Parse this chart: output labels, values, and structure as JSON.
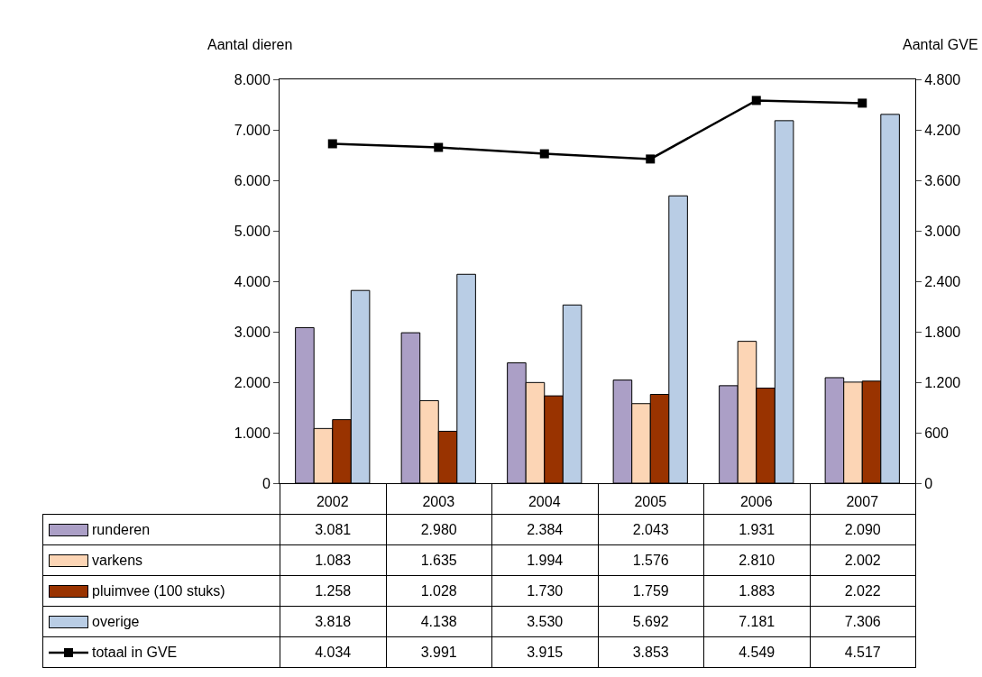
{
  "chart_data": {
    "type": "bar",
    "ylabel": "Aantal dieren",
    "y2label": "Aantal GVE",
    "categories": [
      "2002",
      "2003",
      "2004",
      "2005",
      "2006",
      "2007"
    ],
    "series": [
      {
        "name": "runderen",
        "color": "#ab9fc6",
        "values": [
          3081,
          2980,
          2384,
          2043,
          1931,
          2090
        ],
        "value_labels": [
          "3.081",
          "2.980",
          "2.384",
          "2.043",
          "1.931",
          "2.090"
        ]
      },
      {
        "name": "varkens",
        "color": "#fcd5b5",
        "values": [
          1083,
          1635,
          1994,
          1576,
          2810,
          2002
        ],
        "value_labels": [
          "1.083",
          "1.635",
          "1.994",
          "1.576",
          "2.810",
          "2.002"
        ]
      },
      {
        "name": "pluimvee (100 stuks)",
        "color": "#993300",
        "values": [
          1258,
          1028,
          1730,
          1759,
          1883,
          2022
        ],
        "value_labels": [
          "1.258",
          "1.028",
          "1.730",
          "1.759",
          "1.883",
          "2.022"
        ]
      },
      {
        "name": "overige",
        "color": "#b9cde5",
        "values": [
          3818,
          4138,
          3530,
          5692,
          7181,
          7306
        ],
        "value_labels": [
          "3.818",
          "4.138",
          "3.530",
          "5.692",
          "7.181",
          "7.306"
        ]
      },
      {
        "name": "totaal in GVE",
        "type": "line",
        "axis": "y2",
        "color": "#000000",
        "marker": "square",
        "values": [
          4034,
          3991,
          3915,
          3853,
          4549,
          4517
        ],
        "value_labels": [
          "4.034",
          "3.991",
          "3.915",
          "3.853",
          "4.549",
          "4.517"
        ]
      }
    ],
    "ylim": [
      0,
      8000
    ],
    "yticks": [
      0,
      {
        "value": 1000,
        "label": "1.000"
      },
      {
        "value": 2000,
        "label": "2.000"
      },
      {
        "value": 3000,
        "label": "3.000"
      },
      {
        "value": 4000,
        "label": "4.000"
      },
      {
        "value": 5000,
        "label": "5.000"
      },
      {
        "value": 6000,
        "label": "6.000"
      },
      {
        "value": 7000,
        "label": "7.000"
      },
      {
        "value": 8000,
        "label": "8.000"
      }
    ],
    "y2lim": [
      0,
      4800
    ],
    "y2ticks": [
      0,
      600,
      {
        "value": 1200,
        "label": "1.200"
      },
      {
        "value": 1800,
        "label": "1.800"
      },
      {
        "value": 2400,
        "label": "2.400"
      },
      {
        "value": 3000,
        "label": "3.000"
      },
      {
        "value": 3600,
        "label": "3.600"
      },
      {
        "value": 4200,
        "label": "4.200"
      },
      {
        "value": 4800,
        "label": "4.800"
      }
    ],
    "legend": "bottom left"
  }
}
